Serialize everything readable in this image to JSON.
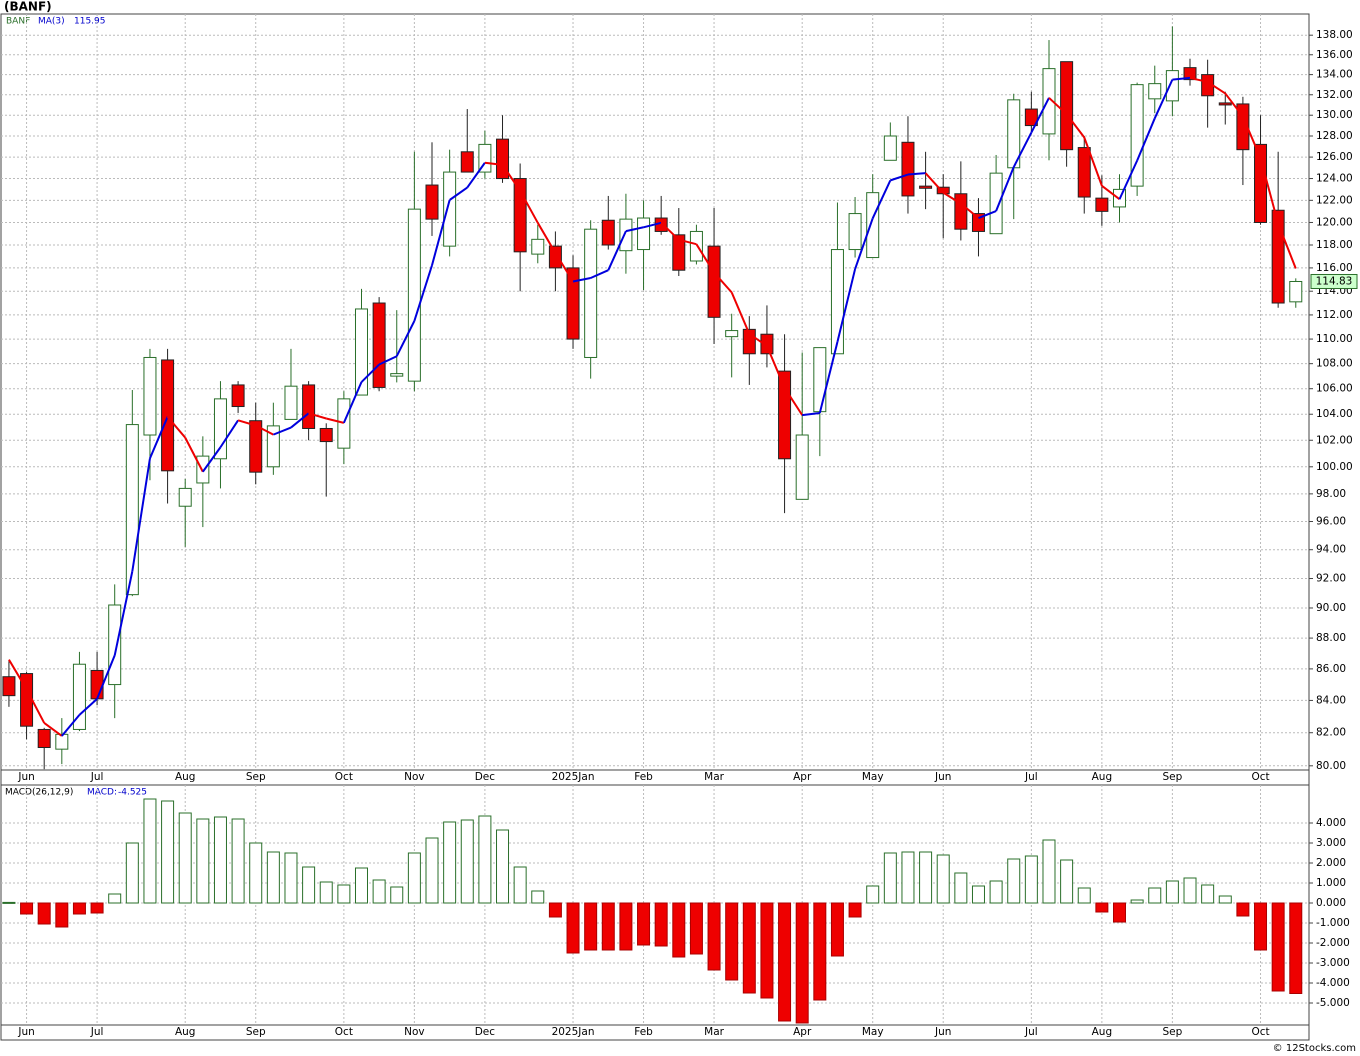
{
  "chart_data": [
    {
      "type": "candlestick",
      "title": "(BANF)",
      "symbol": "BANF",
      "log_scale": true,
      "grid": true,
      "up_color": "#2a6f2a",
      "down_color": "#ee0000",
      "x": [
        0,
        1,
        2,
        3,
        4,
        5,
        6,
        7,
        8,
        9,
        10,
        11,
        12,
        13,
        14,
        15,
        16,
        17,
        18,
        19,
        20,
        21,
        22,
        23,
        24,
        25,
        26,
        27,
        28,
        29,
        30,
        31,
        32,
        33,
        34,
        35,
        36,
        37,
        38,
        39,
        40,
        41,
        42,
        43,
        44,
        45,
        46,
        47,
        48,
        49,
        50,
        51,
        52,
        53,
        54,
        55,
        56,
        57,
        58,
        59,
        60,
        61,
        62,
        63,
        64,
        65,
        66,
        67,
        68,
        69,
        70,
        71,
        72,
        73
      ],
      "xlim": [
        -0.45,
        73.75
      ],
      "xticks": [
        {
          "value": 1,
          "label": "Jun"
        },
        {
          "value": 5,
          "label": "Jul"
        },
        {
          "value": 10,
          "label": "Aug"
        },
        {
          "value": 14,
          "label": "Sep"
        },
        {
          "value": 19,
          "label": "Oct"
        },
        {
          "value": 23,
          "label": "Nov"
        },
        {
          "value": 27,
          "label": "Dec"
        },
        {
          "value": 32,
          "label": "2025Jan"
        },
        {
          "value": 36,
          "label": "Feb"
        },
        {
          "value": 40,
          "label": "Mar"
        },
        {
          "value": 45,
          "label": "Apr"
        },
        {
          "value": 49,
          "label": "May"
        },
        {
          "value": 53,
          "label": "Jun"
        },
        {
          "value": 58,
          "label": "Jul"
        },
        {
          "value": 62,
          "label": "Aug"
        },
        {
          "value": 66,
          "label": "Sep"
        },
        {
          "value": 71,
          "label": "Oct"
        }
      ],
      "open": [
        85.5,
        85.7,
        82.2,
        81,
        82.2,
        85.9,
        85,
        90.9,
        102.4,
        108.3,
        97.1,
        98.8,
        100.6,
        106.3,
        103.5,
        100,
        103.6,
        106.3,
        102.9,
        101.4,
        105.5,
        113,
        107,
        106.6,
        123.4,
        117.9,
        126.5,
        124.6,
        127.7,
        124,
        117.2,
        117.9,
        116,
        108.5,
        120.2,
        117.5,
        117.6,
        120.4,
        118.9,
        116.6,
        117.9,
        110.2,
        110.8,
        110.4,
        107.4,
        97.6,
        104.2,
        108.8,
        117.6,
        116.9,
        125.7,
        127.4,
        123.3,
        123.2,
        122.6,
        120.8,
        119,
        125,
        130.6,
        128.2,
        135.3,
        126.9,
        122.2,
        121.4,
        123.3,
        131.6,
        131.4,
        134.7,
        134,
        131.2,
        131.1,
        127.2,
        121.1,
        113.1
      ],
      "high": [
        86.5,
        85.8,
        82.3,
        82.9,
        87.1,
        87.1,
        91.6,
        105.9,
        109.2,
        109.2,
        99.1,
        102.3,
        106.6,
        106.6,
        104.9,
        104.9,
        109.2,
        106.6,
        103.3,
        105.8,
        114.2,
        113.5,
        112.4,
        126.5,
        127.4,
        126.7,
        130.6,
        128.5,
        130,
        125.4,
        119.8,
        119.2,
        117.1,
        120.2,
        122.4,
        122.6,
        122,
        122.4,
        121.3,
        119.8,
        121.3,
        112.1,
        111.9,
        112.8,
        110.4,
        108.9,
        109.3,
        121.8,
        122.3,
        124.4,
        129.3,
        129.9,
        126.5,
        124.4,
        125.6,
        122.2,
        126.2,
        132.1,
        132.3,
        137.5,
        135.3,
        128,
        124.3,
        124.4,
        133.2,
        134.9,
        138.9,
        135.6,
        135.5,
        132.3,
        131.8,
        130,
        126.5,
        115.1
      ],
      "low": [
        83.6,
        81.6,
        79.8,
        80.1,
        82.1,
        83.7,
        82.9,
        90.8,
        99,
        97.3,
        94.2,
        95.6,
        98.4,
        104.1,
        98.7,
        99.4,
        104,
        102,
        97.8,
        100.2,
        105.5,
        105.8,
        106.5,
        105.8,
        118.8,
        117,
        124.6,
        124,
        123.6,
        114,
        116.4,
        114,
        109.2,
        106.8,
        117.6,
        115.5,
        114.1,
        118.9,
        115.3,
        116.3,
        109.6,
        106.9,
        106.3,
        107.7,
        96.6,
        97.6,
        100.8,
        108.8,
        116.9,
        116.9,
        125.7,
        120.8,
        121.2,
        118.6,
        118.4,
        117,
        119,
        120.3,
        128.4,
        125.7,
        125.1,
        120.8,
        119.7,
        120,
        122.4,
        130.2,
        129.9,
        132.9,
        128.8,
        129.1,
        123.4,
        119.8,
        112.6,
        112.6
      ],
      "close": [
        84.3,
        82.4,
        81.1,
        81.9,
        86.3,
        84.1,
        90.2,
        103.2,
        108.5,
        99.7,
        98.4,
        100.8,
        105.2,
        104.6,
        99.6,
        103.1,
        106.2,
        102.9,
        101.9,
        105.2,
        112.5,
        106.1,
        107.2,
        121.2,
        120.3,
        124.6,
        124.6,
        127.2,
        124,
        117.4,
        118.5,
        116,
        110,
        119.4,
        118,
        120.3,
        120.4,
        119.2,
        115.8,
        119.2,
        111.8,
        110.7,
        108.8,
        108.8,
        100.6,
        102.4,
        109.3,
        117.6,
        120.8,
        122.7,
        128,
        122.4,
        123.1,
        122.6,
        119.4,
        119.2,
        124.5,
        131.5,
        129,
        134.6,
        126.7,
        122.3,
        121,
        123,
        133,
        133.1,
        134.4,
        133.5,
        131.9,
        131,
        126.7,
        120,
        113,
        114.83
      ],
      "ma": {
        "name": "MA(3)",
        "rise_color": "#0000dd",
        "fall_color": "#ee0000",
        "values": [
          86.6,
          84.7,
          82.6,
          81.8,
          83.1,
          84.1,
          86.87,
          92.5,
          100.63,
          103.8,
          102.2,
          99.63,
          101.47,
          103.53,
          103.13,
          102.43,
          102.97,
          104.07,
          103.67,
          103.33,
          106.53,
          107.93,
          108.6,
          111.5,
          116.23,
          122.03,
          123.17,
          125.47,
          125.27,
          122.87,
          119.97,
          117.3,
          114.83,
          115.13,
          115.8,
          119.23,
          119.57,
          119.97,
          118.47,
          118.07,
          115.6,
          113.9,
          110.43,
          109.43,
          106.07,
          103.93,
          104.1,
          109.77,
          115.9,
          120.37,
          123.83,
          124.37,
          124.5,
          122.7,
          121.7,
          120.4,
          121.03,
          125.07,
          128.33,
          131.7,
          130.1,
          127.87,
          123.33,
          122.1,
          125.67,
          129.7,
          133.5,
          133.67,
          133.27,
          132.13,
          129.87,
          125.9,
          119.9,
          115.95
        ]
      },
      "ylim": [
        79.75,
        140.2
      ],
      "yticks": [
        {
          "value": 80,
          "label": "80.00"
        },
        {
          "value": 82,
          "label": "82.00"
        },
        {
          "value": 84,
          "label": "84.00"
        },
        {
          "value": 86,
          "label": "86.00"
        },
        {
          "value": 88,
          "label": "88.00"
        },
        {
          "value": 90,
          "label": "90.00"
        },
        {
          "value": 92,
          "label": "92.00"
        },
        {
          "value": 94,
          "label": "94.00"
        },
        {
          "value": 96,
          "label": "96.00"
        },
        {
          "value": 98,
          "label": "98.00"
        },
        {
          "value": 100,
          "label": "100.00"
        },
        {
          "value": 102,
          "label": "102.00"
        },
        {
          "value": 104,
          "label": "104.00"
        },
        {
          "value": 106,
          "label": "106.00"
        },
        {
          "value": 108,
          "label": "108.00"
        },
        {
          "value": 110,
          "label": "110.00"
        },
        {
          "value": 112,
          "label": "112.00"
        },
        {
          "value": 114,
          "label": "114.00"
        },
        {
          "value": 116,
          "label": "116.00"
        },
        {
          "value": 118,
          "label": "118.00"
        },
        {
          "value": 120,
          "label": "120.00"
        },
        {
          "value": 122,
          "label": "122.00"
        },
        {
          "value": 124,
          "label": "124.00"
        },
        {
          "value": 126,
          "label": "126.00"
        },
        {
          "value": 128,
          "label": "128.00"
        },
        {
          "value": 130,
          "label": "130.00"
        },
        {
          "value": 132,
          "label": "132.00"
        },
        {
          "value": 134,
          "label": "134.00"
        },
        {
          "value": 136,
          "label": "136.00"
        },
        {
          "value": 138,
          "label": "138.00"
        }
      ]
    },
    {
      "type": "bar",
      "title": "MACD(26,12,9)",
      "series_label": "MACD:",
      "pos_color": "#2a6f2a",
      "neg_color": "#ee0000",
      "grid": true,
      "x": [
        0,
        1,
        2,
        3,
        4,
        5,
        6,
        7,
        8,
        9,
        10,
        11,
        12,
        13,
        14,
        15,
        16,
        17,
        18,
        19,
        20,
        21,
        22,
        23,
        24,
        25,
        26,
        27,
        28,
        29,
        30,
        31,
        32,
        33,
        34,
        35,
        36,
        37,
        38,
        39,
        40,
        41,
        42,
        43,
        44,
        45,
        46,
        47,
        48,
        49,
        50,
        51,
        52,
        53,
        54,
        55,
        56,
        57,
        58,
        59,
        60,
        61,
        62,
        63,
        64,
        65,
        66,
        67,
        68,
        69,
        70,
        71,
        72,
        73
      ],
      "xlim": [
        -0.45,
        73.75
      ],
      "xticks": [
        {
          "value": 1,
          "label": "Jun"
        },
        {
          "value": 5,
          "label": "Jul"
        },
        {
          "value": 10,
          "label": "Aug"
        },
        {
          "value": 14,
          "label": "Sep"
        },
        {
          "value": 19,
          "label": "Oct"
        },
        {
          "value": 23,
          "label": "Nov"
        },
        {
          "value": 27,
          "label": "Dec"
        },
        {
          "value": 32,
          "label": "2025Jan"
        },
        {
          "value": 36,
          "label": "Feb"
        },
        {
          "value": 40,
          "label": "Mar"
        },
        {
          "value": 45,
          "label": "Apr"
        },
        {
          "value": 49,
          "label": "May"
        },
        {
          "value": 53,
          "label": "Jun"
        },
        {
          "value": 58,
          "label": "Jul"
        },
        {
          "value": 62,
          "label": "Aug"
        },
        {
          "value": 66,
          "label": "Sep"
        },
        {
          "value": 71,
          "label": "Oct"
        }
      ],
      "values": [
        0.03,
        -0.55,
        -1.05,
        -1.2,
        -0.55,
        -0.5,
        0.45,
        3,
        5.2,
        5.1,
        4.5,
        4.2,
        4.3,
        4.2,
        3,
        2.55,
        2.5,
        1.8,
        1.05,
        0.9,
        1.75,
        1.15,
        0.8,
        2.5,
        3.25,
        4.05,
        4.15,
        4.35,
        3.65,
        1.8,
        0.6,
        -0.7,
        -2.5,
        -2.35,
        -2.35,
        -2.35,
        -2.1,
        -2.15,
        -2.7,
        -2.55,
        -3.35,
        -3.85,
        -4.5,
        -4.75,
        -5.9,
        -6,
        -4.85,
        -2.65,
        -0.7,
        0.85,
        2.5,
        2.55,
        2.55,
        2.4,
        1.5,
        0.85,
        1.1,
        2.2,
        2.35,
        3.15,
        2.15,
        0.75,
        -0.45,
        -0.95,
        0.15,
        0.75,
        1.1,
        1.25,
        0.9,
        0.35,
        -0.65,
        -2.35,
        -4.4,
        -4.525
      ],
      "ylim": [
        -6.1,
        5.9
      ],
      "yticks": [
        {
          "value": 4,
          "label": "4.000"
        },
        {
          "value": 3,
          "label": "3.000"
        },
        {
          "value": 2,
          "label": "2.000"
        },
        {
          "value": 1,
          "label": "1.000"
        },
        {
          "value": 0,
          "label": "0.000"
        },
        {
          "value": -1,
          "label": "-1.000"
        },
        {
          "value": -2,
          "label": "-2.000"
        },
        {
          "value": -3,
          "label": "-3.000"
        },
        {
          "value": -4,
          "label": "-4.000"
        },
        {
          "value": -5,
          "label": "-5.000"
        }
      ]
    }
  ],
  "footer": "© 12Stocks.com"
}
